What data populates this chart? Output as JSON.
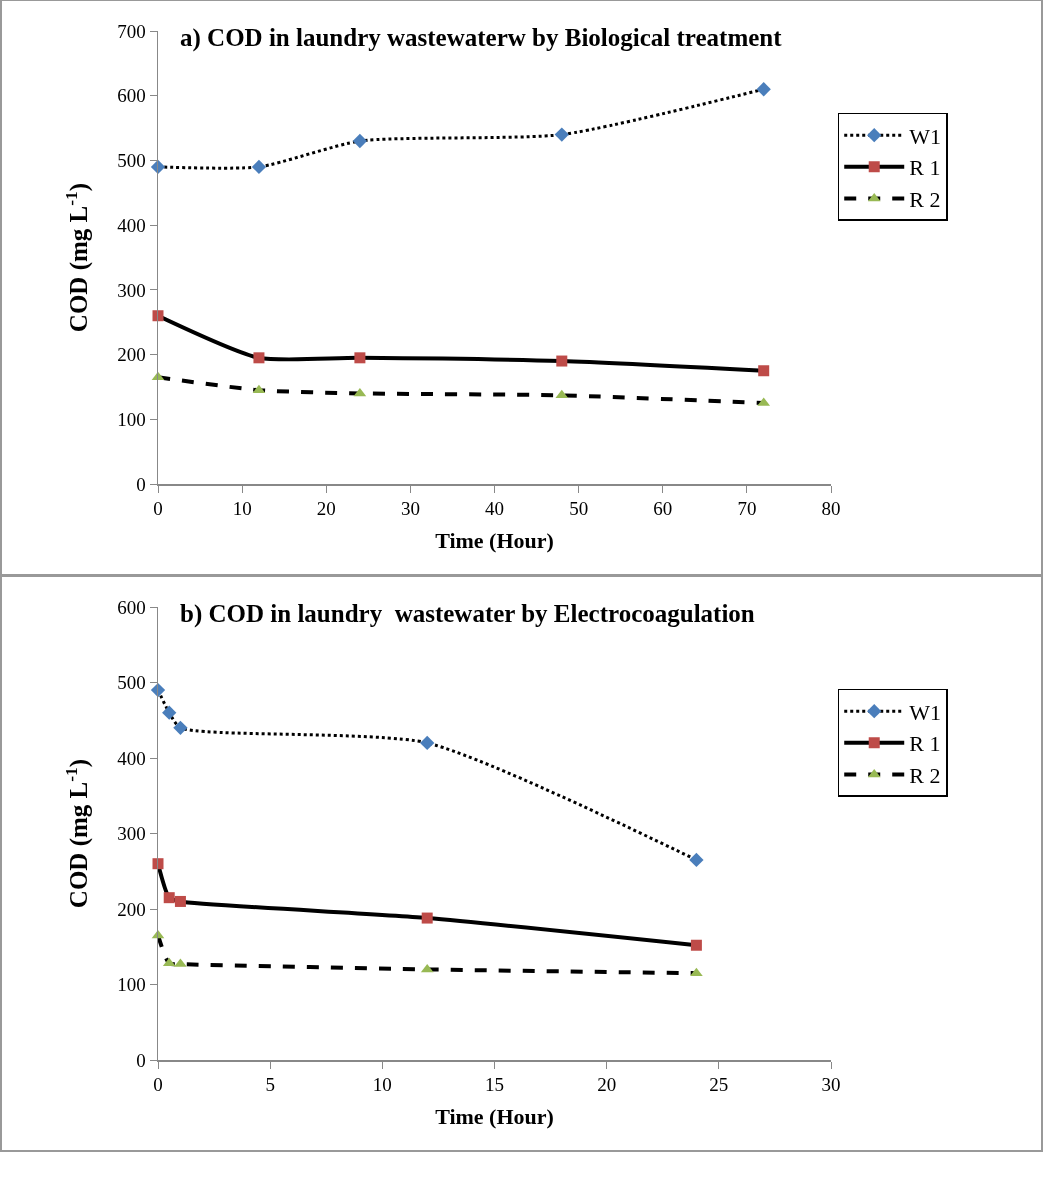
{
  "chart_data": [
    {
      "type": "line",
      "title": "a) COD in laundry wastewaterw by Biological treatment",
      "xlabel": "Time (Hour)",
      "ylabel": "COD (mg L$^{-1}$)",
      "x": [
        0,
        12,
        24,
        48,
        72
      ],
      "xlim": [
        0,
        80
      ],
      "xticks": [
        0,
        10,
        20,
        30,
        40,
        50,
        60,
        70,
        80
      ],
      "ylim": [
        0,
        700
      ],
      "yticks": [
        0,
        100,
        200,
        300,
        400,
        500,
        600,
        700
      ],
      "grid": false,
      "legend": "right",
      "series": [
        {
          "name": "W1",
          "color": "#4a7ebb",
          "marker": "diamond",
          "line_style": "dotted",
          "values": [
            490,
            490,
            530,
            540,
            610
          ]
        },
        {
          "name": "R 1",
          "color": "#be4b48",
          "marker": "square",
          "line_style": "solid",
          "values": [
            260,
            195,
            195,
            190,
            175
          ]
        },
        {
          "name": "R 2",
          "color": "#98b954",
          "marker": "triangle",
          "line_style": "dashed",
          "values": [
            165,
            145,
            140,
            137,
            125
          ]
        }
      ]
    },
    {
      "type": "line",
      "title": "b) COD in laundry  wastewater by Electrocoagulation",
      "xlabel": "Time (Hour)",
      "ylabel": "COD (mg L$^{-1}$)",
      "x": [
        0,
        0.5,
        1,
        12,
        24
      ],
      "xlim": [
        0,
        30
      ],
      "xticks": [
        0,
        5,
        10,
        15,
        20,
        25,
        30
      ],
      "ylim": [
        0,
        600
      ],
      "yticks": [
        0,
        100,
        200,
        300,
        400,
        500,
        600
      ],
      "grid": false,
      "legend": "right",
      "series": [
        {
          "name": "W1",
          "color": "#4a7ebb",
          "marker": "diamond",
          "line_style": "dotted",
          "values": [
            490,
            460,
            440,
            420,
            265
          ]
        },
        {
          "name": "R 1",
          "color": "#be4b48",
          "marker": "square",
          "line_style": "solid",
          "values": [
            260,
            215,
            210,
            188,
            152
          ]
        },
        {
          "name": "R 2",
          "color": "#98b954",
          "marker": "triangle",
          "line_style": "dashed",
          "values": [
            165,
            128,
            127,
            120,
            115
          ]
        }
      ]
    }
  ]
}
